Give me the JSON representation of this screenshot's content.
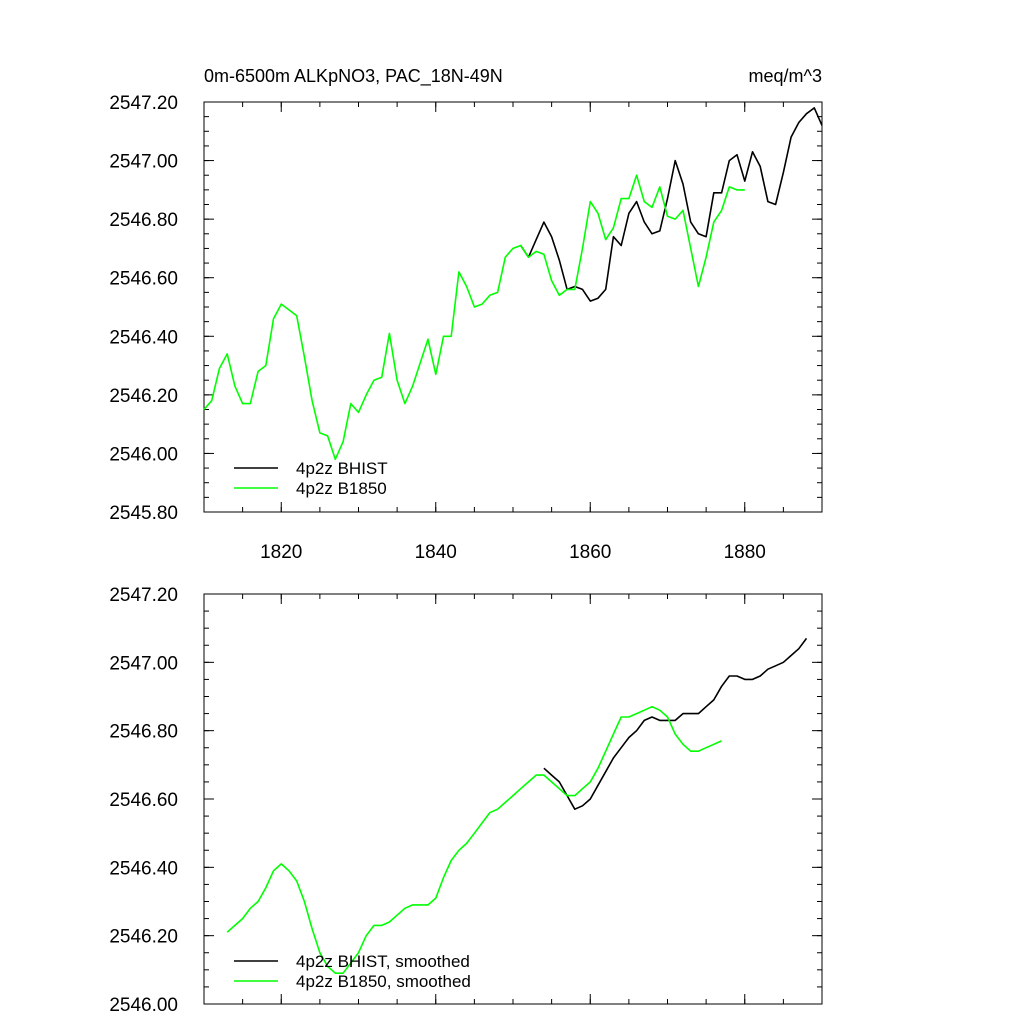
{
  "chart_data": [
    {
      "type": "line",
      "title": "0m-6500m ALKpNO3, PAC_18N-49N",
      "units": "meq/m^3",
      "xlim": [
        1810,
        1890
      ],
      "ylim": [
        2545.8,
        2547.2
      ],
      "yticks": [
        2545.8,
        2546.0,
        2546.2,
        2546.4,
        2546.6,
        2546.8,
        2547.0,
        2547.2
      ],
      "ytick_labels": [
        "2545.80",
        "2546.00",
        "2546.20",
        "2546.40",
        "2546.60",
        "2546.80",
        "2547.00",
        "2547.20"
      ],
      "xticks": [
        1820,
        1840,
        1860,
        1880
      ],
      "xtick_labels": [
        "1820",
        "1840",
        "1860",
        "1880"
      ],
      "legend_position": "bottom-left",
      "series": [
        {
          "name": "4p2z BHIST",
          "color": "#000000",
          "x": [
            1851,
            1852,
            1853,
            1854,
            1855,
            1856,
            1857,
            1858,
            1859,
            1860,
            1861,
            1862,
            1863,
            1864,
            1865,
            1866,
            1867,
            1868,
            1869,
            1870,
            1871,
            1872,
            1873,
            1874,
            1875,
            1876,
            1877,
            1878,
            1879,
            1880,
            1881,
            1882,
            1883,
            1884,
            1885,
            1886,
            1887,
            1888,
            1889,
            1890
          ],
          "y": [
            2546.71,
            2546.67,
            2546.73,
            2546.79,
            2546.74,
            2546.66,
            2546.56,
            2546.57,
            2546.56,
            2546.52,
            2546.53,
            2546.56,
            2546.74,
            2546.71,
            2546.82,
            2546.86,
            2546.79,
            2546.75,
            2546.76,
            2546.87,
            2547.0,
            2546.92,
            2546.79,
            2546.75,
            2546.74,
            2546.89,
            2546.89,
            2547.0,
            2547.02,
            2546.93,
            2547.03,
            2546.98,
            2546.86,
            2546.85,
            2546.96,
            2547.08,
            2547.13,
            2547.16,
            2547.18,
            2547.12
          ]
        },
        {
          "name": "4p2z B1850",
          "color": "#00ff00",
          "x": [
            1810,
            1811,
            1812,
            1813,
            1814,
            1815,
            1816,
            1817,
            1818,
            1819,
            1820,
            1821,
            1822,
            1823,
            1824,
            1825,
            1826,
            1827,
            1828,
            1829,
            1830,
            1831,
            1832,
            1833,
            1834,
            1835,
            1836,
            1837,
            1838,
            1839,
            1840,
            1841,
            1842,
            1843,
            1844,
            1845,
            1846,
            1847,
            1848,
            1849,
            1850,
            1851,
            1852,
            1853,
            1854,
            1855,
            1856,
            1857,
            1858,
            1859,
            1860,
            1861,
            1862,
            1863,
            1864,
            1865,
            1866,
            1867,
            1868,
            1869,
            1870,
            1871,
            1872,
            1873,
            1874,
            1875,
            1876,
            1877,
            1878,
            1879,
            1880
          ],
          "y": [
            2546.15,
            2546.18,
            2546.29,
            2546.34,
            2546.23,
            2546.17,
            2546.17,
            2546.28,
            2546.3,
            2546.46,
            2546.51,
            2546.49,
            2546.47,
            2546.33,
            2546.18,
            2546.07,
            2546.06,
            2545.98,
            2546.04,
            2546.17,
            2546.14,
            2546.2,
            2546.25,
            2546.26,
            2546.41,
            2546.25,
            2546.17,
            2546.23,
            2546.31,
            2546.39,
            2546.27,
            2546.4,
            2546.4,
            2546.62,
            2546.57,
            2546.5,
            2546.51,
            2546.54,
            2546.55,
            2546.67,
            2546.7,
            2546.71,
            2546.67,
            2546.69,
            2546.68,
            2546.59,
            2546.54,
            2546.56,
            2546.56,
            2546.7,
            2546.86,
            2546.82,
            2546.73,
            2546.77,
            2546.87,
            2546.87,
            2546.95,
            2546.86,
            2546.84,
            2546.91,
            2546.81,
            2546.8,
            2546.83,
            2546.7,
            2546.57,
            2546.67,
            2546.79,
            2546.83,
            2546.91,
            2546.9,
            2546.9
          ]
        }
      ]
    },
    {
      "type": "line",
      "title": "",
      "xlim": [
        1810,
        1890
      ],
      "ylim": [
        2546.0,
        2547.2
      ],
      "yticks": [
        2546.0,
        2546.2,
        2546.4,
        2546.6,
        2546.8,
        2547.0,
        2547.2
      ],
      "ytick_labels": [
        "2546.00",
        "2546.20",
        "2546.40",
        "2546.60",
        "2546.80",
        "2547.00",
        "2547.20"
      ],
      "xticks": [
        1820,
        1840,
        1860,
        1880
      ],
      "xtick_labels": [],
      "legend_position": "bottom-left",
      "series": [
        {
          "name": "4p2z BHIST, smoothed",
          "color": "#000000",
          "x": [
            1854,
            1855,
            1856,
            1857,
            1858,
            1859,
            1860,
            1861,
            1862,
            1863,
            1864,
            1865,
            1866,
            1867,
            1868,
            1869,
            1870,
            1871,
            1872,
            1873,
            1874,
            1875,
            1876,
            1877,
            1878,
            1879,
            1880,
            1881,
            1882,
            1883,
            1884,
            1885,
            1886,
            1887,
            1888
          ],
          "y": [
            2546.69,
            2546.67,
            2546.65,
            2546.61,
            2546.57,
            2546.58,
            2546.6,
            2546.64,
            2546.68,
            2546.72,
            2546.75,
            2546.78,
            2546.8,
            2546.83,
            2546.84,
            2546.83,
            2546.83,
            2546.83,
            2546.85,
            2546.85,
            2546.85,
            2546.87,
            2546.89,
            2546.93,
            2546.96,
            2546.96,
            2546.95,
            2546.95,
            2546.96,
            2546.98,
            2546.99,
            2547.0,
            2547.02,
            2547.04,
            2547.07
          ]
        },
        {
          "name": "4p2z B1850, smoothed",
          "color": "#00ff00",
          "x": [
            1813,
            1814,
            1815,
            1816,
            1817,
            1818,
            1819,
            1820,
            1821,
            1822,
            1823,
            1824,
            1825,
            1826,
            1827,
            1828,
            1829,
            1830,
            1831,
            1832,
            1833,
            1834,
            1835,
            1836,
            1837,
            1838,
            1839,
            1840,
            1841,
            1842,
            1843,
            1844,
            1845,
            1846,
            1847,
            1848,
            1849,
            1850,
            1851,
            1852,
            1853,
            1854,
            1855,
            1856,
            1857,
            1858,
            1859,
            1860,
            1861,
            1862,
            1863,
            1864,
            1865,
            1866,
            1867,
            1868,
            1869,
            1870,
            1871,
            1872,
            1873,
            1874,
            1875,
            1876,
            1877
          ],
          "y": [
            2546.21,
            2546.23,
            2546.25,
            2546.28,
            2546.3,
            2546.34,
            2546.39,
            2546.41,
            2546.39,
            2546.36,
            2546.3,
            2546.22,
            2546.15,
            2546.11,
            2546.09,
            2546.09,
            2546.12,
            2546.15,
            2546.2,
            2546.23,
            2546.23,
            2546.24,
            2546.26,
            2546.28,
            2546.29,
            2546.29,
            2546.29,
            2546.31,
            2546.37,
            2546.42,
            2546.45,
            2546.47,
            2546.5,
            2546.53,
            2546.56,
            2546.57,
            2546.59,
            2546.61,
            2546.63,
            2546.65,
            2546.67,
            2546.67,
            2546.65,
            2546.63,
            2546.61,
            2546.61,
            2546.63,
            2546.65,
            2546.69,
            2546.74,
            2546.79,
            2546.84,
            2546.84,
            2546.85,
            2546.86,
            2546.87,
            2546.86,
            2546.84,
            2546.79,
            2546.76,
            2546.74,
            2546.74,
            2546.75,
            2546.76,
            2546.77
          ]
        }
      ]
    }
  ]
}
